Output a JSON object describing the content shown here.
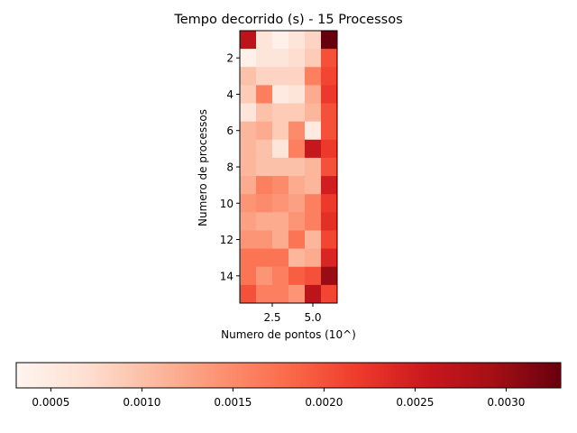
{
  "chart_data": {
    "type": "heatmap",
    "title": "Tempo decorrido (s) - 15 Processos",
    "xlabel": "Numero de pontos (10^)",
    "ylabel": "Numero de processos",
    "x": [
      1,
      2,
      3,
      4,
      5,
      6
    ],
    "y": [
      1,
      2,
      3,
      4,
      5,
      6,
      7,
      8,
      9,
      10,
      11,
      12,
      13,
      14,
      15
    ],
    "xticks": [
      2.5,
      5.0
    ],
    "xtick_labels": [
      "2.5",
      "5.0"
    ],
    "yticks": [
      2,
      4,
      6,
      8,
      10,
      12,
      14
    ],
    "ytick_labels": [
      "2",
      "4",
      "6",
      "8",
      "10",
      "12",
      "14"
    ],
    "colormap": "Reds",
    "vmin": 0.00031,
    "vmax": 0.0033,
    "colorbar_ticks": [
      0.0005,
      0.001,
      0.0015,
      0.002,
      0.0025,
      0.003
    ],
    "colorbar_tick_labels": [
      "0.0005",
      "0.0010",
      "0.0015",
      "0.0020",
      "0.0025",
      "0.0030"
    ],
    "colorbar_position": "bottom",
    "values": [
      [
        0.0027,
        0.0006,
        0.0004,
        0.0006,
        0.0008,
        0.0033
      ],
      [
        0.0004,
        0.0006,
        0.0006,
        0.0007,
        0.0009,
        0.002
      ],
      [
        0.001,
        0.0008,
        0.0008,
        0.0008,
        0.0016,
        0.0021
      ],
      [
        0.0009,
        0.0016,
        0.0005,
        0.0006,
        0.0012,
        0.0022
      ],
      [
        0.0006,
        0.001,
        0.0009,
        0.0009,
        0.0011,
        0.002
      ],
      [
        0.0011,
        0.0012,
        0.0009,
        0.0015,
        0.0005,
        0.002
      ],
      [
        0.0011,
        0.001,
        0.0006,
        0.0016,
        0.0026,
        0.0022
      ],
      [
        0.0011,
        0.001,
        0.001,
        0.001,
        0.0011,
        0.002
      ],
      [
        0.0012,
        0.0016,
        0.0015,
        0.0012,
        0.0011,
        0.0025
      ],
      [
        0.0014,
        0.0015,
        0.0014,
        0.0013,
        0.0016,
        0.0022
      ],
      [
        0.0013,
        0.0012,
        0.0012,
        0.0014,
        0.0016,
        0.0023
      ],
      [
        0.0014,
        0.0014,
        0.0012,
        0.0017,
        0.0011,
        0.0021
      ],
      [
        0.0017,
        0.0017,
        0.0017,
        0.0011,
        0.0012,
        0.0024
      ],
      [
        0.0017,
        0.0014,
        0.0016,
        0.0019,
        0.002,
        0.003
      ],
      [
        0.002,
        0.0016,
        0.0016,
        0.0014,
        0.0027,
        0.0021
      ]
    ]
  }
}
